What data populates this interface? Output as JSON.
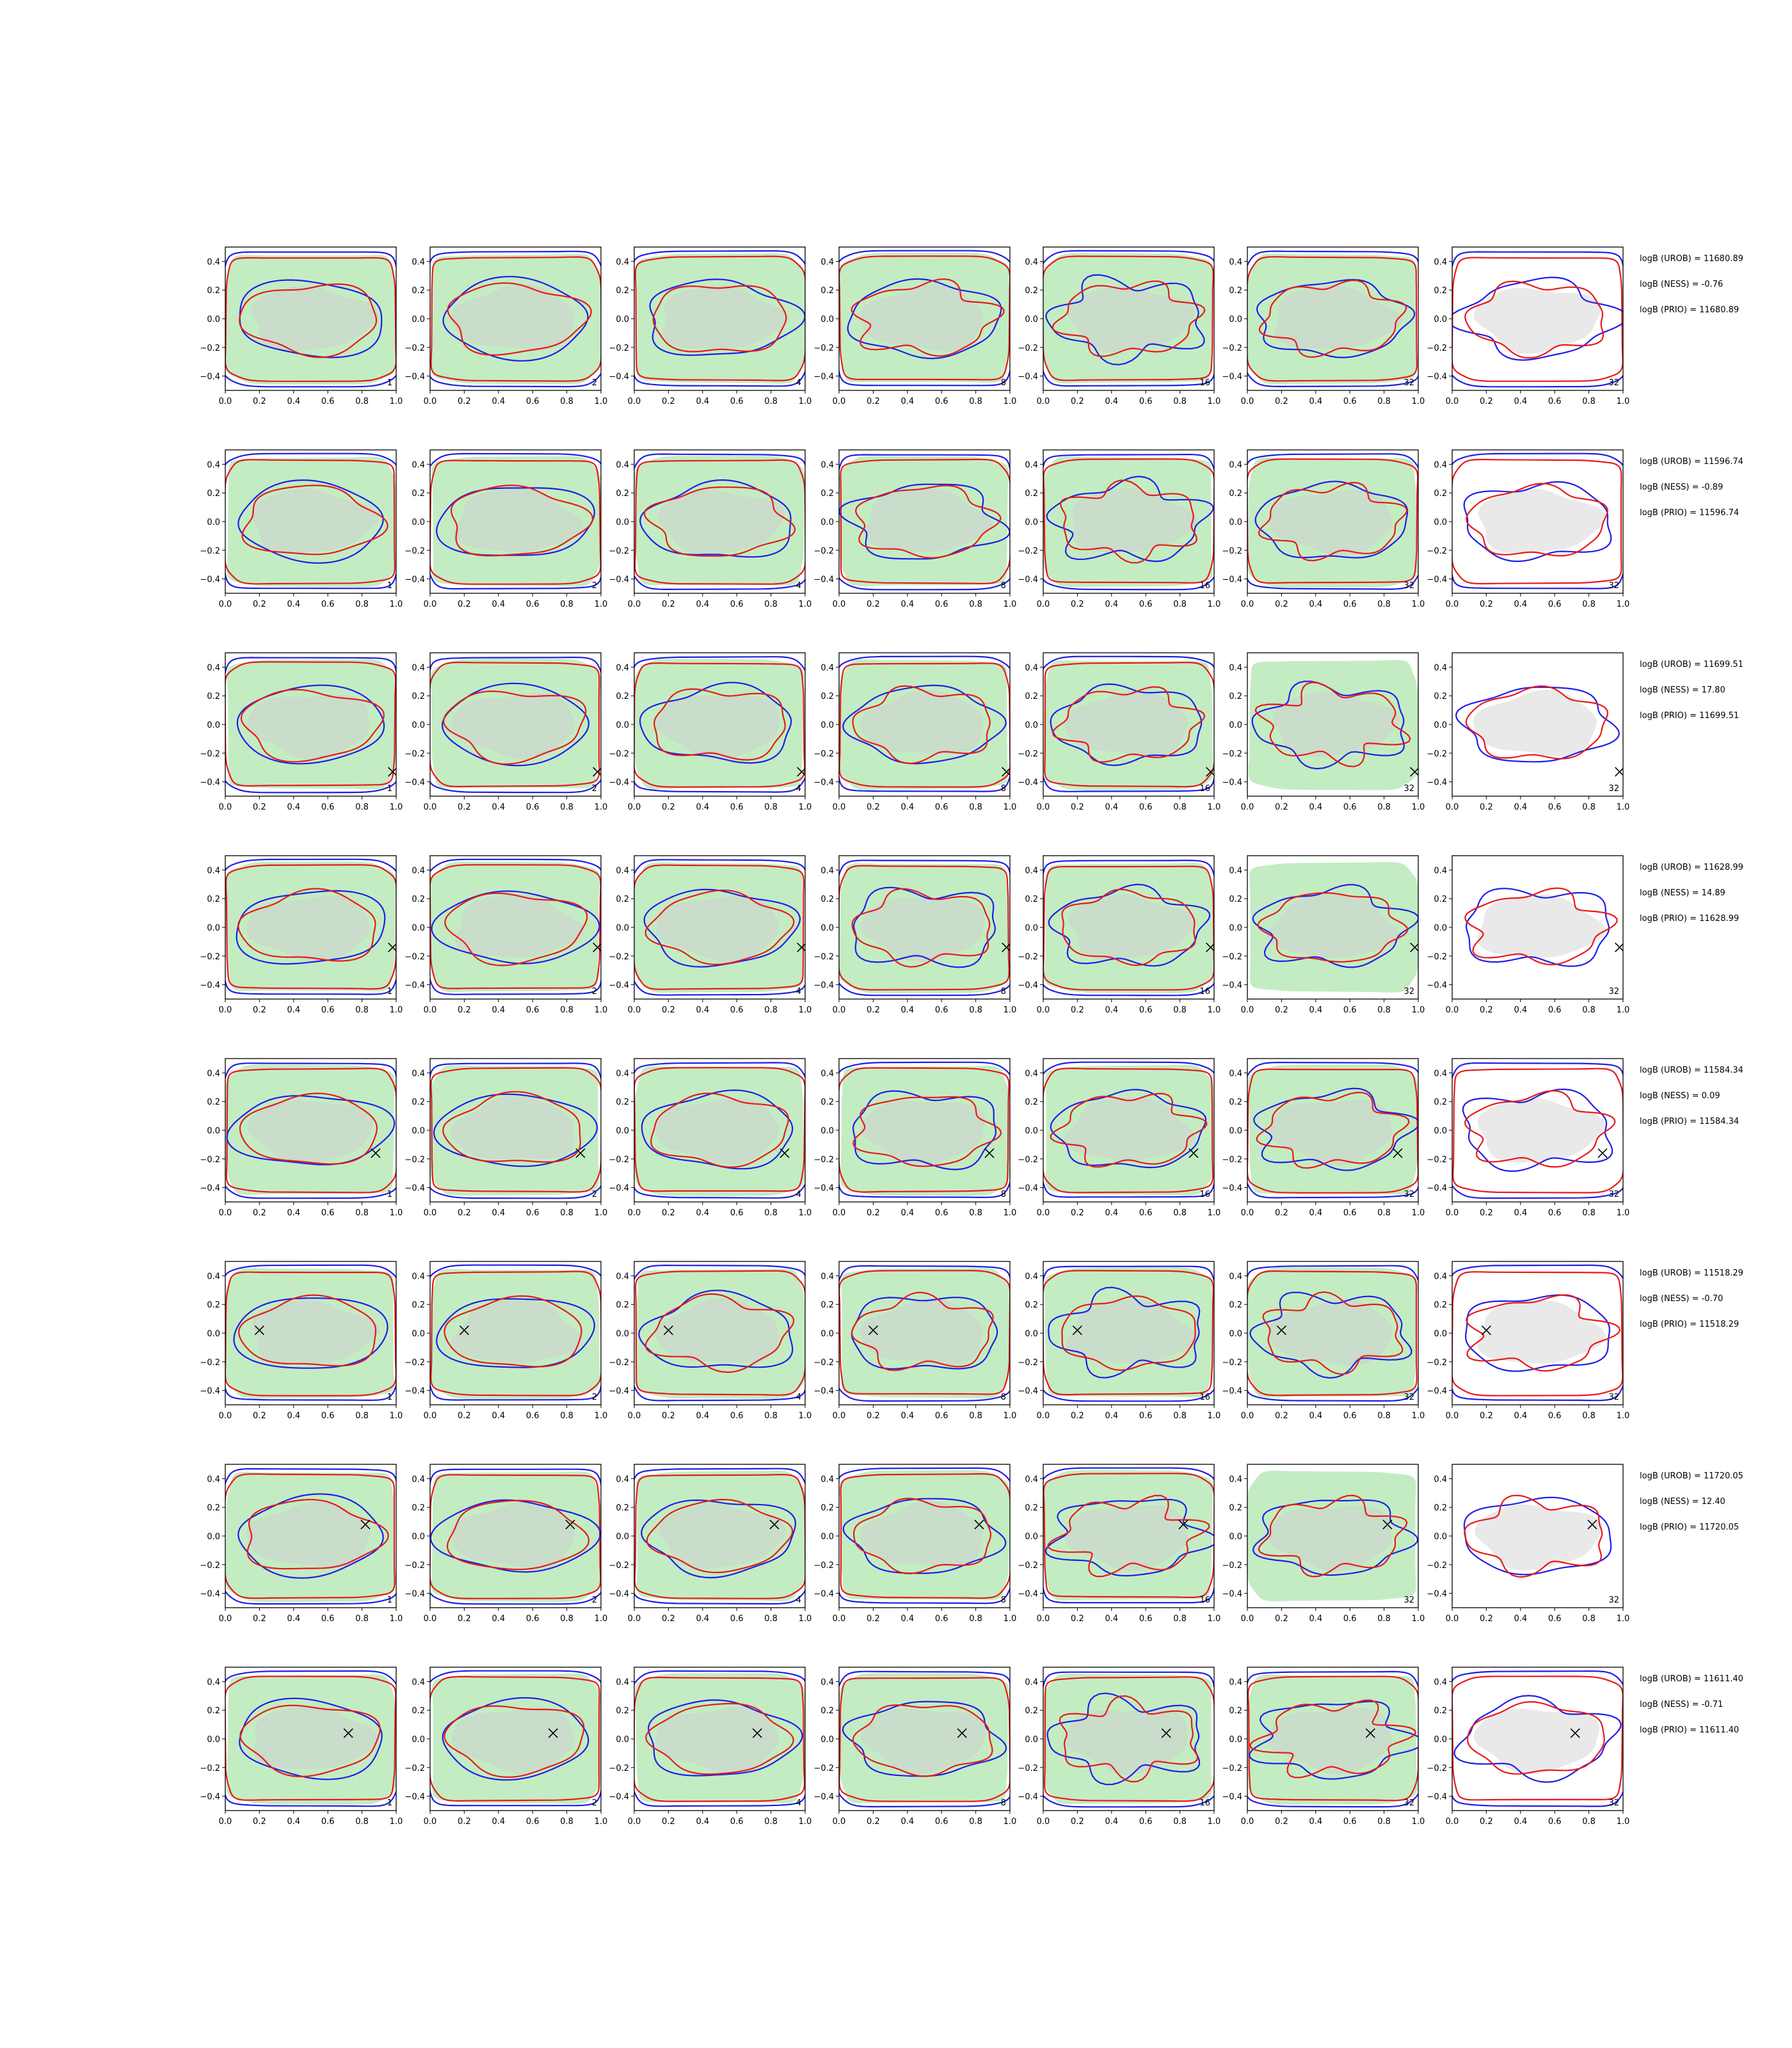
{
  "chart_data": {
    "type": "contour-grid",
    "rows": 8,
    "cols": 7,
    "column_labels": [
      "1",
      "2",
      "4",
      "8",
      "16",
      "32",
      "32"
    ],
    "xlim": [
      0.0,
      1.0
    ],
    "ylim": [
      -0.5,
      0.5
    ],
    "x_ticks": [
      "0.0",
      "0.2",
      "0.4",
      "0.6",
      "0.8",
      "1.0"
    ],
    "y_ticks": [
      "0.4",
      "0.2",
      "0.0",
      "−0.2",
      "−0.4"
    ],
    "y_tick_values": [
      0.4,
      0.2,
      0.0,
      -0.2,
      -0.4
    ],
    "x_tick_values": [
      0.0,
      0.2,
      0.4,
      0.6,
      0.8,
      1.0
    ],
    "series_colors": {
      "blue": "#1f1fe6",
      "red": "#e81a1a",
      "green_fill": "#c3ecc3",
      "gray_fill": "#cfcfcf"
    },
    "markers": [
      {
        "row": 3,
        "x": 0.98,
        "y": -0.33
      },
      {
        "row": 4,
        "x": 0.98,
        "y": -0.14
      },
      {
        "row": 5,
        "x": 0.88,
        "y": -0.16
      },
      {
        "row": 6,
        "x": 0.2,
        "y": 0.02
      },
      {
        "row": 7,
        "x": 0.82,
        "y": 0.08
      },
      {
        "row": 8,
        "x": 0.72,
        "y": 0.04
      }
    ],
    "row_stats": [
      {
        "urob": "logB (UROB) = 11680.89",
        "ness": "logB (NESS) = -0.76",
        "prio": "logB (PRIO) = 11680.89"
      },
      {
        "urob": "logB (UROB) = 11596.74",
        "ness": "logB (NESS) = -0.89",
        "prio": "logB (PRIO) = 11596.74"
      },
      {
        "urob": "logB (UROB) = 11699.51",
        "ness": "logB (NESS) = 17.80",
        "prio": "logB (PRIO) = 11699.51"
      },
      {
        "urob": "logB (UROB) = 11628.99",
        "ness": "logB (NESS) = 14.89",
        "prio": "logB (PRIO) = 11628.99"
      },
      {
        "urob": "logB (UROB) = 11584.34",
        "ness": "logB (NESS) = 0.09",
        "prio": "logB (PRIO) = 11584.34"
      },
      {
        "urob": "logB (UROB) = 11518.29",
        "ness": "logB (NESS) = -0.70",
        "prio": "logB (PRIO) = 11518.29"
      },
      {
        "urob": "logB (UROB) = 11720.05",
        "ness": "logB (NESS) = 12.40",
        "prio": "logB (PRIO) = 11720.05"
      },
      {
        "urob": "logB (UROB) = 11611.40",
        "ness": "logB (NESS) = -0.71",
        "prio": "logB (PRIO) = 11611.40"
      }
    ]
  }
}
